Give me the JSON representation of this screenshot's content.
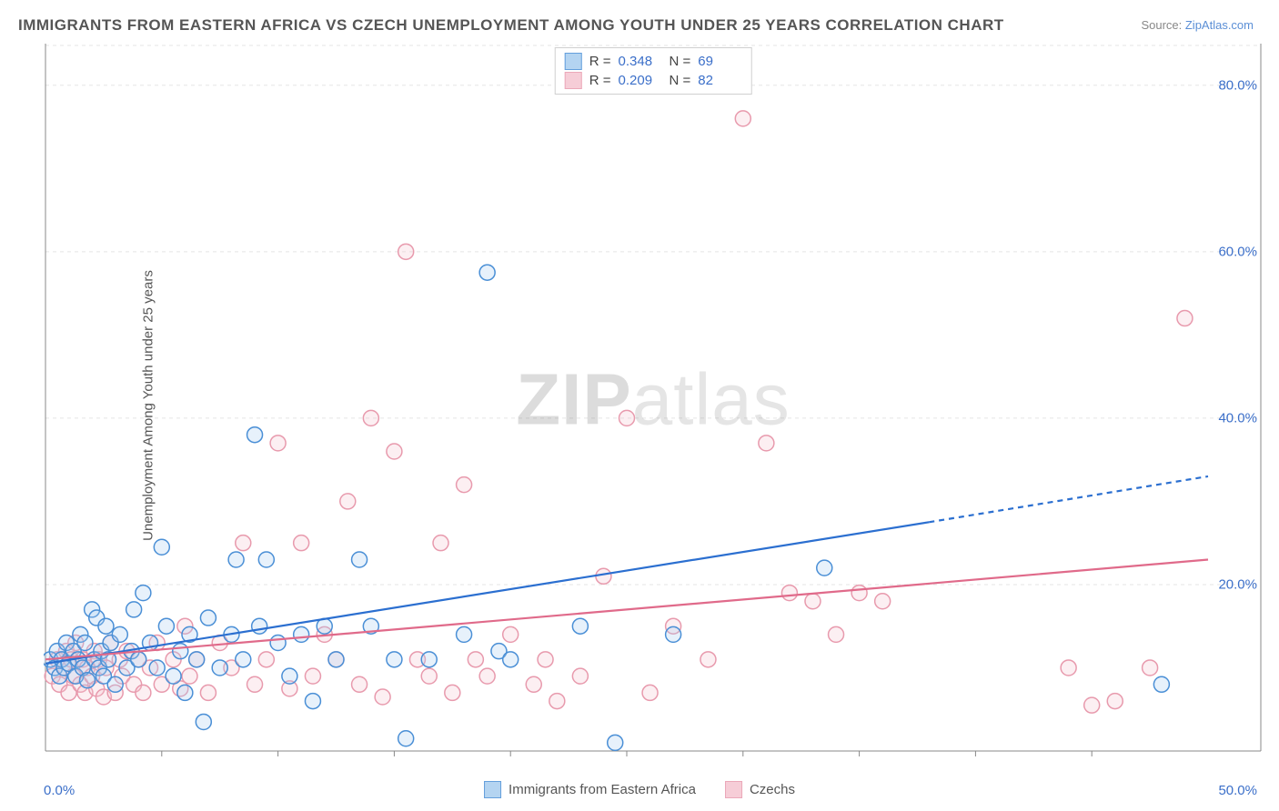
{
  "title": "IMMIGRANTS FROM EASTERN AFRICA VS CZECH UNEMPLOYMENT AMONG YOUTH UNDER 25 YEARS CORRELATION CHART",
  "source_prefix": "Source: ",
  "source_link": "ZipAtlas.com",
  "y_axis_label": "Unemployment Among Youth under 25 years",
  "watermark_bold": "ZIP",
  "watermark_light": "atlas",
  "chart": {
    "type": "scatter",
    "xlim": [
      0,
      50
    ],
    "ylim": [
      0,
      85
    ],
    "x_ticks": [
      0,
      50
    ],
    "x_tick_labels": [
      "0.0%",
      "50.0%"
    ],
    "x_minor_ticks": [
      5,
      10,
      15,
      20,
      25,
      30,
      35,
      40,
      45
    ],
    "y_ticks": [
      20,
      40,
      60,
      80
    ],
    "y_tick_labels": [
      "20.0%",
      "40.0%",
      "60.0%",
      "80.0%"
    ],
    "background_color": "#ffffff",
    "grid_color": "#e5e5e5",
    "axis_color": "#888888",
    "marker_radius": 8.5,
    "marker_stroke_width": 1.5,
    "marker_fill_opacity": 0.28,
    "trend_line_width": 2.2,
    "series": [
      {
        "name": "Immigrants from Eastern Africa",
        "short": "blue",
        "stroke": "#4a8fd6",
        "fill": "#a8cdef",
        "line_color": "#2b6fd0",
        "R": "0.348",
        "N": "69",
        "trend": {
          "x1": 0,
          "y1": 10.5,
          "x2": 38,
          "y2": 27.5,
          "dash_x2": 50,
          "dash_y2": 33
        },
        "points": [
          [
            0.2,
            11
          ],
          [
            0.4,
            10
          ],
          [
            0.5,
            12
          ],
          [
            0.6,
            9
          ],
          [
            0.7,
            11
          ],
          [
            0.8,
            10
          ],
          [
            0.9,
            13
          ],
          [
            1.0,
            10.5
          ],
          [
            1.2,
            12
          ],
          [
            1.3,
            9
          ],
          [
            1.4,
            11
          ],
          [
            1.5,
            14
          ],
          [
            1.6,
            10
          ],
          [
            1.7,
            13
          ],
          [
            1.8,
            8.5
          ],
          [
            2.0,
            17
          ],
          [
            2.1,
            11
          ],
          [
            2.2,
            16
          ],
          [
            2.3,
            10
          ],
          [
            2.4,
            12
          ],
          [
            2.5,
            9
          ],
          [
            2.6,
            15
          ],
          [
            2.7,
            11
          ],
          [
            2.8,
            13
          ],
          [
            3.0,
            8
          ],
          [
            3.2,
            14
          ],
          [
            3.5,
            10
          ],
          [
            3.7,
            12
          ],
          [
            3.8,
            17
          ],
          [
            4.0,
            11
          ],
          [
            4.2,
            19
          ],
          [
            4.5,
            13
          ],
          [
            4.8,
            10
          ],
          [
            5.0,
            24.5
          ],
          [
            5.2,
            15
          ],
          [
            5.5,
            9
          ],
          [
            5.8,
            12
          ],
          [
            6.0,
            7
          ],
          [
            6.2,
            14
          ],
          [
            6.5,
            11
          ],
          [
            6.8,
            3.5
          ],
          [
            7.0,
            16
          ],
          [
            7.5,
            10
          ],
          [
            8.0,
            14
          ],
          [
            8.2,
            23
          ],
          [
            8.5,
            11
          ],
          [
            9.0,
            38
          ],
          [
            9.2,
            15
          ],
          [
            9.5,
            23
          ],
          [
            10.0,
            13
          ],
          [
            10.5,
            9
          ],
          [
            11.0,
            14
          ],
          [
            11.5,
            6
          ],
          [
            12.0,
            15
          ],
          [
            12.5,
            11
          ],
          [
            13.5,
            23
          ],
          [
            14.0,
            15
          ],
          [
            15.0,
            11
          ],
          [
            15.5,
            1.5
          ],
          [
            16.5,
            11
          ],
          [
            18.0,
            14
          ],
          [
            19.0,
            57.5
          ],
          [
            19.5,
            12
          ],
          [
            20.0,
            11
          ],
          [
            23.0,
            15
          ],
          [
            24.5,
            1
          ],
          [
            27.0,
            14
          ],
          [
            33.5,
            22
          ],
          [
            48.0,
            8
          ]
        ]
      },
      {
        "name": "Czechs",
        "short": "pink",
        "stroke": "#e89aad",
        "fill": "#f5c5d1",
        "line_color": "#e06a8a",
        "R": "0.209",
        "N": "82",
        "trend": {
          "x1": 0,
          "y1": 11,
          "x2": 50,
          "y2": 23,
          "dash_x2": 50,
          "dash_y2": 23
        },
        "points": [
          [
            0.3,
            9
          ],
          [
            0.5,
            11
          ],
          [
            0.6,
            8
          ],
          [
            0.8,
            10
          ],
          [
            0.9,
            12
          ],
          [
            1.0,
            7
          ],
          [
            1.1,
            11
          ],
          [
            1.2,
            9
          ],
          [
            1.3,
            13
          ],
          [
            1.5,
            8
          ],
          [
            1.6,
            11
          ],
          [
            1.7,
            7
          ],
          [
            1.8,
            10
          ],
          [
            2.0,
            9
          ],
          [
            2.1,
            12
          ],
          [
            2.2,
            7.5
          ],
          [
            2.3,
            11
          ],
          [
            2.5,
            6.5
          ],
          [
            2.6,
            10
          ],
          [
            2.8,
            13
          ],
          [
            3.0,
            7
          ],
          [
            3.2,
            11
          ],
          [
            3.3,
            9
          ],
          [
            3.5,
            12
          ],
          [
            3.8,
            8
          ],
          [
            4.0,
            11
          ],
          [
            4.2,
            7
          ],
          [
            4.5,
            10
          ],
          [
            4.8,
            13
          ],
          [
            5.0,
            8
          ],
          [
            5.5,
            11
          ],
          [
            5.8,
            7.5
          ],
          [
            6.0,
            15
          ],
          [
            6.2,
            9
          ],
          [
            6.5,
            11
          ],
          [
            7.0,
            7
          ],
          [
            7.5,
            13
          ],
          [
            8.0,
            10
          ],
          [
            8.5,
            25
          ],
          [
            9.0,
            8
          ],
          [
            9.5,
            11
          ],
          [
            10.0,
            37
          ],
          [
            10.5,
            7.5
          ],
          [
            11.0,
            25
          ],
          [
            11.5,
            9
          ],
          [
            12.0,
            14
          ],
          [
            12.5,
            11
          ],
          [
            13.0,
            30
          ],
          [
            13.5,
            8
          ],
          [
            14.0,
            40
          ],
          [
            14.5,
            6.5
          ],
          [
            15.0,
            36
          ],
          [
            15.5,
            60
          ],
          [
            16.0,
            11
          ],
          [
            16.5,
            9
          ],
          [
            17.0,
            25
          ],
          [
            17.5,
            7
          ],
          [
            18.0,
            32
          ],
          [
            18.5,
            11
          ],
          [
            19.0,
            9
          ],
          [
            20.0,
            14
          ],
          [
            21.0,
            8
          ],
          [
            21.5,
            11
          ],
          [
            22.0,
            6
          ],
          [
            23.0,
            9
          ],
          [
            24.0,
            21
          ],
          [
            25.0,
            40
          ],
          [
            26.0,
            7
          ],
          [
            27.0,
            15
          ],
          [
            28.5,
            11
          ],
          [
            30.0,
            76
          ],
          [
            31.0,
            37
          ],
          [
            32.0,
            19
          ],
          [
            33.0,
            18
          ],
          [
            34.0,
            14
          ],
          [
            35.0,
            19
          ],
          [
            36.0,
            18
          ],
          [
            44.0,
            10
          ],
          [
            45.0,
            5.5
          ],
          [
            46.0,
            6
          ],
          [
            47.5,
            10
          ],
          [
            49.0,
            52
          ]
        ]
      }
    ]
  },
  "bottom_legend": [
    {
      "label": "Immigrants from Eastern Africa",
      "series": 0
    },
    {
      "label": "Czechs",
      "series": 1
    }
  ]
}
